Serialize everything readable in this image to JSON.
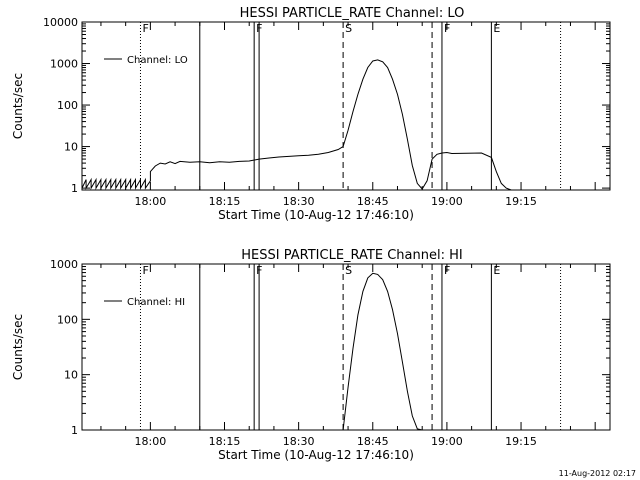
{
  "footer_timestamp": "11-Aug-2012 02:17",
  "chart_data": [
    {
      "type": "line",
      "title": "HESSI PARTICLE_RATE Channel: LO",
      "xlabel": "Start Time (10-Aug-12 17:46:10)",
      "ylabel": "Counts/sec",
      "yscale": "log",
      "xlim": [
        "17:46:10",
        "19:33:00"
      ],
      "ylim": [
        0.9,
        10000
      ],
      "xticks": [
        "18:00",
        "18:15",
        "18:30",
        "18:45",
        "19:00",
        "19:15"
      ],
      "yticks": [
        "1",
        "10",
        "100",
        "1000",
        "10000"
      ],
      "legend": "top-left",
      "series": [
        {
          "name": "Channel: LO",
          "x": [
            "17:46:10",
            "17:47",
            "17:47",
            "17:48",
            "17:48",
            "17:49",
            "17:49",
            "17:50",
            "17:50",
            "17:51",
            "17:51",
            "17:52",
            "17:52",
            "17:53",
            "17:53",
            "17:54",
            "17:54",
            "17:55",
            "17:55",
            "17:56",
            "17:56",
            "17:57",
            "17:57",
            "17:58",
            "17:58",
            "17:59",
            "17:59",
            "18:00",
            "18:00",
            "18:01",
            "18:02",
            "18:03",
            "18:04",
            "18:05",
            "18:06",
            "18:08",
            "18:10",
            "18:12",
            "18:14",
            "18:16",
            "18:18",
            "18:20",
            "18:22",
            "18:24",
            "18:26",
            "18:28",
            "18:30",
            "18:32",
            "18:34",
            "18:36",
            "18:38",
            "18:39",
            "18:40",
            "18:41",
            "18:42",
            "18:43",
            "18:44",
            "18:45",
            "18:46",
            "18:47",
            "18:48",
            "18:49",
            "18:50",
            "18:51",
            "18:52",
            "18:53",
            "18:54",
            "18:55",
            "18:56",
            "18:57",
            "18:58",
            "18:59",
            "19:00",
            "19:01",
            "19:04",
            "19:07",
            "19:09",
            "19:10",
            "19:11",
            "19:12",
            "19:13"
          ],
          "values": [
            1,
            1.6,
            1,
            1.6,
            1,
            1.6,
            1,
            1.6,
            1,
            1.6,
            1,
            1.6,
            1,
            1.6,
            1,
            1.6,
            1,
            1.6,
            1,
            1.6,
            1,
            1.6,
            1,
            1.6,
            1,
            1.6,
            1,
            1.5,
            2.5,
            3.4,
            4,
            3.8,
            4.3,
            3.9,
            4.4,
            4.2,
            4.3,
            4.1,
            4.3,
            4.2,
            4.4,
            4.5,
            5,
            5.3,
            5.6,
            5.8,
            6,
            6.2,
            6.5,
            7.2,
            8.5,
            10,
            25,
            70,
            180,
            420,
            800,
            1150,
            1220,
            1100,
            800,
            420,
            180,
            60,
            15,
            3.5,
            1.3,
            0.95,
            1.5,
            5,
            6.5,
            7,
            7.2,
            6.8,
            6.9,
            7,
            5.5,
            2.5,
            1.3,
            1,
            0.9
          ]
        }
      ],
      "markers": [
        {
          "time": "17:58",
          "style": "dotted",
          "label": "F"
        },
        {
          "time": "18:10",
          "style": "solid",
          "label": ""
        },
        {
          "time": "18:21",
          "style": "solid",
          "label": "F"
        },
        {
          "time": "18:22",
          "style": "solid",
          "label": ""
        },
        {
          "time": "18:39",
          "style": "dashed",
          "label": "S"
        },
        {
          "time": "18:57",
          "style": "dashed",
          "label": ""
        },
        {
          "time": "18:59",
          "style": "solid",
          "label": "F"
        },
        {
          "time": "19:09",
          "style": "solid",
          "label": "E"
        },
        {
          "time": "19:23",
          "style": "dotted",
          "label": ""
        }
      ]
    },
    {
      "type": "line",
      "title": "HESSI PARTICLE_RATE Channel: HI",
      "xlabel": "Start Time (10-Aug-12 17:46:10)",
      "ylabel": "Counts/sec",
      "yscale": "log",
      "xlim": [
        "17:46:10",
        "19:33:00"
      ],
      "ylim": [
        1,
        1000
      ],
      "xticks": [
        "18:00",
        "18:15",
        "18:30",
        "18:45",
        "19:00",
        "19:15"
      ],
      "yticks": [
        "1",
        "10",
        "100",
        "1000"
      ],
      "legend": "top-left",
      "series": [
        {
          "name": "Channel: HI",
          "x": [
            "18:39",
            "18:40",
            "18:41",
            "18:42",
            "18:43",
            "18:44",
            "18:45",
            "18:46",
            "18:47",
            "18:48",
            "18:49",
            "18:50",
            "18:51",
            "18:52",
            "18:53",
            "18:54",
            "18:55"
          ],
          "values": [
            1,
            6,
            30,
            120,
            320,
            560,
            680,
            650,
            520,
            320,
            150,
            55,
            17,
            5,
            1.8,
            1.05,
            1
          ]
        }
      ],
      "markers": [
        {
          "time": "17:58",
          "style": "dotted",
          "label": "F"
        },
        {
          "time": "18:10",
          "style": "solid",
          "label": ""
        },
        {
          "time": "18:21",
          "style": "solid",
          "label": "F"
        },
        {
          "time": "18:22",
          "style": "solid",
          "label": ""
        },
        {
          "time": "18:39",
          "style": "dashed",
          "label": "S"
        },
        {
          "time": "18:57",
          "style": "dashed",
          "label": ""
        },
        {
          "time": "18:59",
          "style": "solid",
          "label": "F"
        },
        {
          "time": "19:09",
          "style": "solid",
          "label": "E"
        },
        {
          "time": "19:23",
          "style": "dotted",
          "label": ""
        }
      ]
    }
  ]
}
